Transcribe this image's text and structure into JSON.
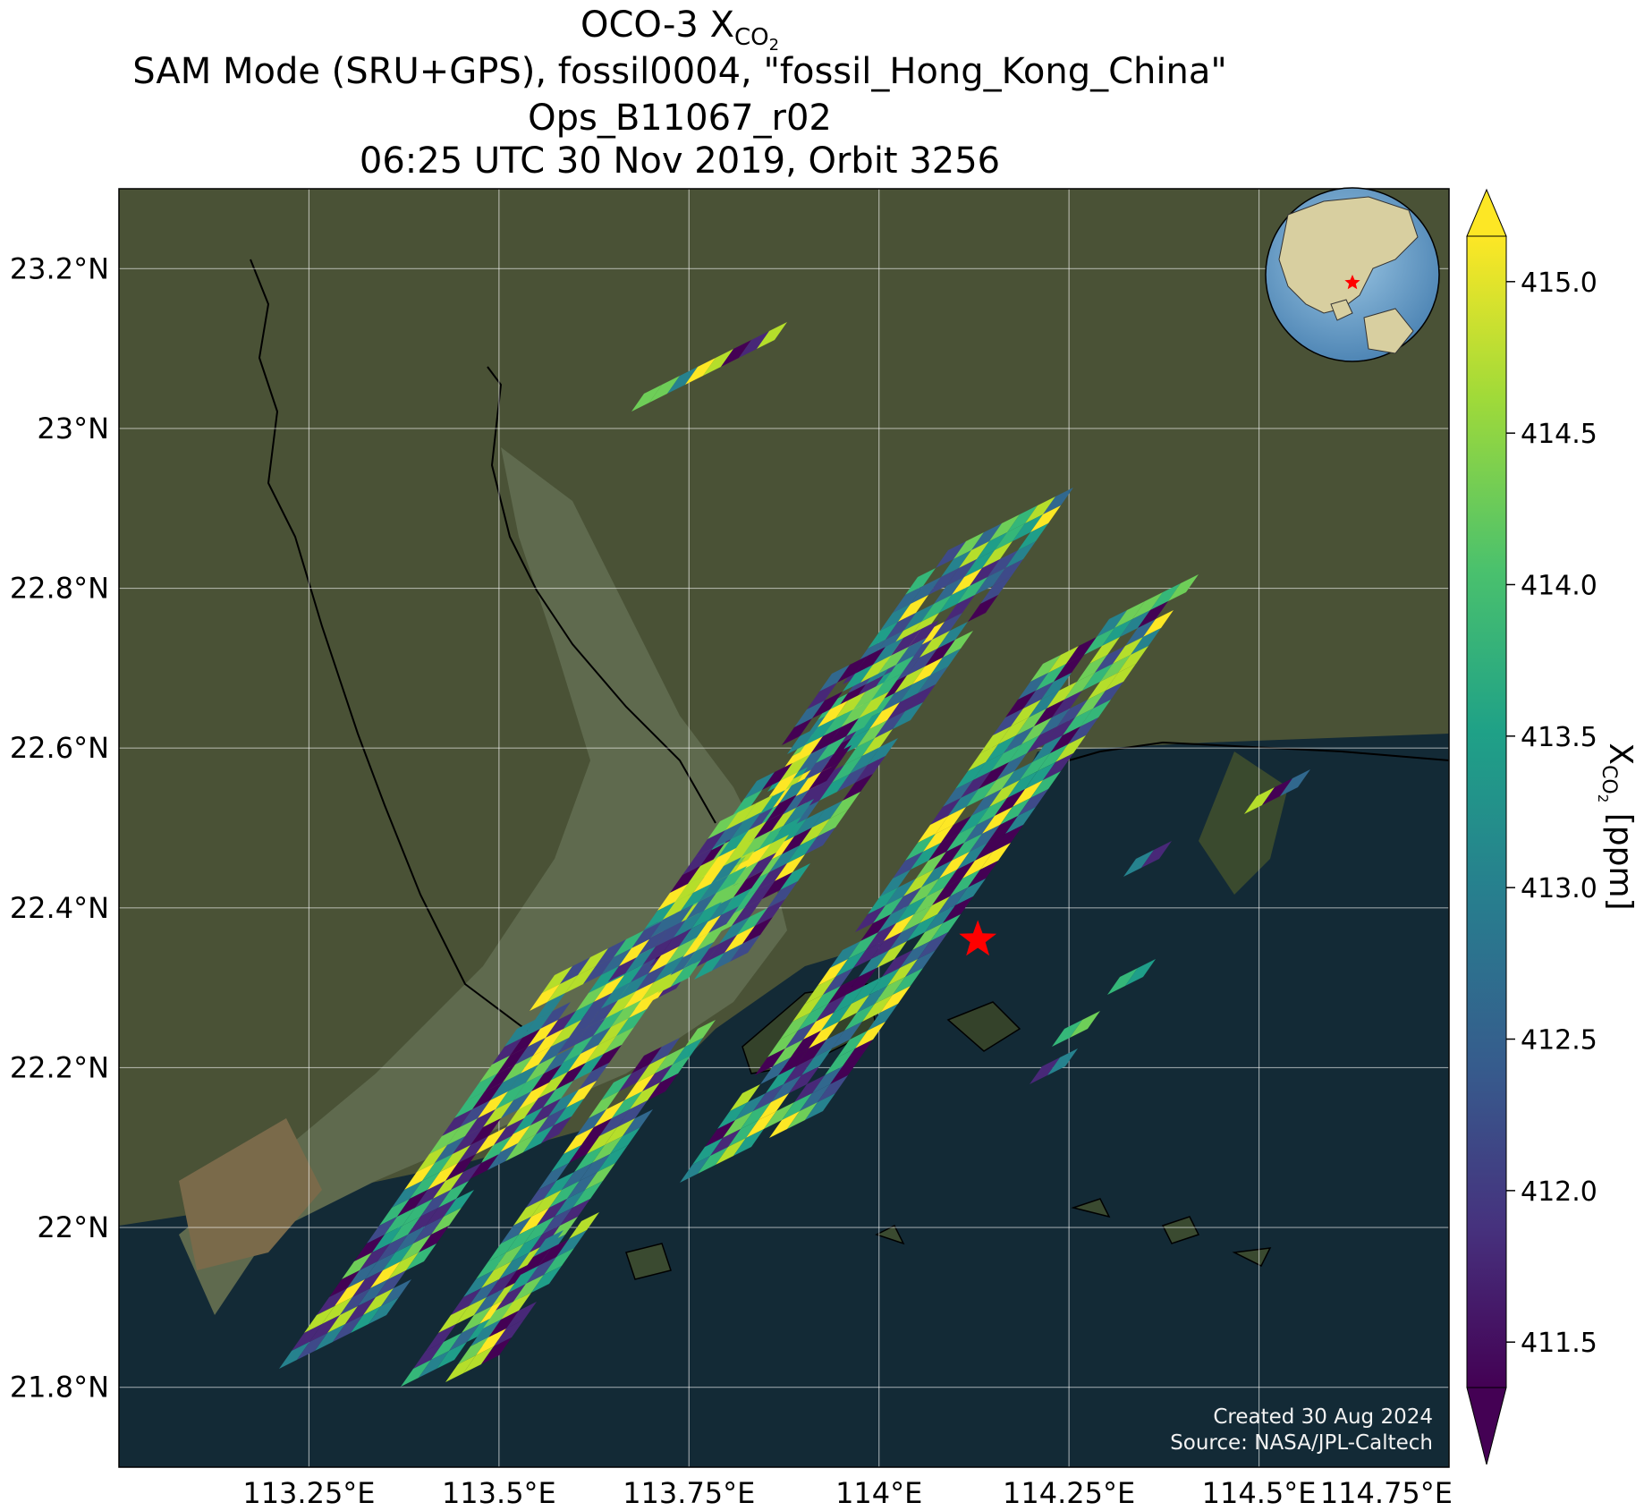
{
  "header": {
    "title_main": "OCO-3 X",
    "title_sub": "CO",
    "title_subsub": "2",
    "line2": "SAM Mode (SRU+GPS), fossil0004, \"fossil_Hong_Kong_China\"",
    "line3": "Ops_B11067_r02",
    "line4": "06:25 UTC 30 Nov 2019, Orbit 3256"
  },
  "map": {
    "lon_range": [
      113.0,
      114.75
    ],
    "lat_range": [
      21.7,
      23.3
    ],
    "lon_ticks": [
      {
        "value": 113.25,
        "label": "113.25°E"
      },
      {
        "value": 113.5,
        "label": "113.5°E"
      },
      {
        "value": 113.75,
        "label": "113.75°E"
      },
      {
        "value": 114.0,
        "label": "114°E"
      },
      {
        "value": 114.25,
        "label": "114.25°E"
      },
      {
        "value": 114.5,
        "label": "114.5°E"
      },
      {
        "value": 114.75,
        "label": "114.75°E"
      }
    ],
    "lat_ticks": [
      {
        "value": 21.8,
        "label": "21.8°N"
      },
      {
        "value": 22.0,
        "label": "22°N"
      },
      {
        "value": 22.2,
        "label": "22.2°N"
      },
      {
        "value": 22.4,
        "label": "22.4°N"
      },
      {
        "value": 22.6,
        "label": "22.6°N"
      },
      {
        "value": 22.8,
        "label": "22.8°N"
      },
      {
        "value": 23.0,
        "label": "23°N"
      },
      {
        "value": 23.2,
        "label": "23.2°N"
      }
    ],
    "gridlines": true,
    "target": {
      "lon": 114.13,
      "lat": 22.36,
      "marker": "red-star"
    },
    "inset": {
      "type": "globe",
      "marker": "red-star",
      "placement": "top-right"
    },
    "colors": {
      "land": "#4a5236",
      "water": "#132a36",
      "estuary": "#5f6a4e"
    }
  },
  "colorbar": {
    "label_main": "X",
    "label_sub": "CO",
    "label_subsub": "2",
    "label_unit": " [ppm]",
    "min": 411.5,
    "max": 415.0,
    "extend": "both",
    "colormap": "viridis",
    "ticks": [
      "411.5",
      "412.0",
      "412.5",
      "413.0",
      "413.5",
      "414.0",
      "414.5",
      "415.0"
    ]
  },
  "credit": {
    "created": "Created 30 Aug 2024",
    "source": "Source: NASA/JPL-Caltech"
  }
}
